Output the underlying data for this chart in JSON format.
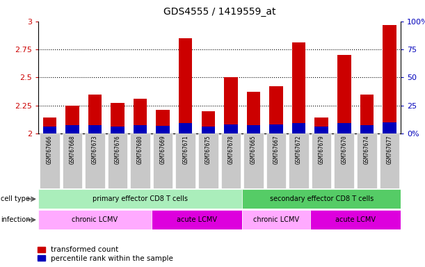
{
  "title": "GDS4555 / 1419559_at",
  "samples": [
    "GSM767666",
    "GSM767668",
    "GSM767673",
    "GSM767676",
    "GSM767680",
    "GSM767669",
    "GSM767671",
    "GSM767675",
    "GSM767678",
    "GSM767665",
    "GSM767667",
    "GSM767672",
    "GSM767679",
    "GSM767670",
    "GSM767674",
    "GSM767677"
  ],
  "red_values": [
    2.14,
    2.25,
    2.35,
    2.27,
    2.31,
    2.21,
    2.85,
    2.2,
    2.5,
    2.37,
    2.42,
    2.81,
    2.14,
    2.7,
    2.35,
    2.97
  ],
  "blue_values": [
    2.065,
    2.075,
    2.075,
    2.065,
    2.075,
    2.07,
    2.095,
    2.065,
    2.078,
    2.075,
    2.078,
    2.095,
    2.06,
    2.09,
    2.075,
    2.1
  ],
  "ymin": 2.0,
  "ymax": 3.0,
  "yticks_left": [
    2.0,
    2.25,
    2.5,
    2.75,
    3.0
  ],
  "ytick_labels_left": [
    "2",
    "2.25",
    "2.5",
    "2.75",
    "3"
  ],
  "yticks_right": [
    0,
    25,
    50,
    75,
    100
  ],
  "ytick_labels_right": [
    "0%",
    "25",
    "50",
    "75",
    "100%"
  ],
  "cell_type_groups": [
    {
      "label": "primary effector CD8 T cells",
      "start": 0,
      "end": 9,
      "color": "#AAEEBB"
    },
    {
      "label": "secondary effector CD8 T cells",
      "start": 9,
      "end": 16,
      "color": "#55CC66"
    }
  ],
  "infection_groups": [
    {
      "label": "chronic LCMV",
      "start": 0,
      "end": 5,
      "color": "#FFAAFF"
    },
    {
      "label": "acute LCMV",
      "start": 5,
      "end": 9,
      "color": "#DD00DD"
    },
    {
      "label": "chronic LCMV",
      "start": 9,
      "end": 12,
      "color": "#FFAAFF"
    },
    {
      "label": "acute LCMV",
      "start": 12,
      "end": 16,
      "color": "#DD00DD"
    }
  ],
  "bar_color": "#CC0000",
  "blue_color": "#0000BB",
  "xticklabel_bg": "#C8C8C8",
  "legend_red": "transformed count",
  "legend_blue": "percentile rank within the sample",
  "cell_type_label": "cell type",
  "infection_label": "infection"
}
